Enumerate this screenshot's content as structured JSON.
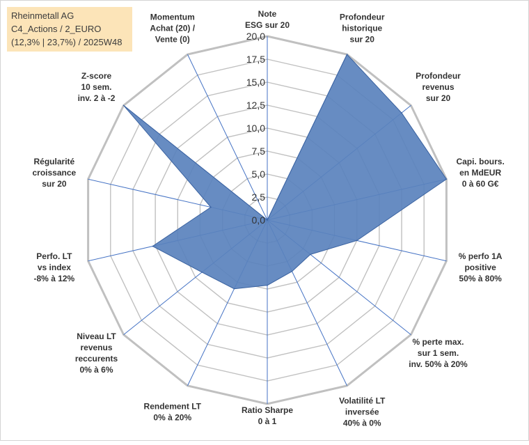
{
  "info": {
    "line1": "Rheinmetall AG",
    "line2": "C4_Actions / 2_EURO",
    "line3": "(12,3% | 23,7%) / 2025W48"
  },
  "chart_data": {
    "type": "radar",
    "title": "Rheinmetall AG",
    "r_min": 0,
    "r_max": 20,
    "r_step": 2.5,
    "tick_labels": [
      "0,0",
      "2,5",
      "5,0",
      "7,5",
      "10,0",
      "12,5",
      "15,0",
      "17,5",
      "20,0"
    ],
    "grid": true,
    "axes": [
      {
        "label": [
          "Note",
          "ESG sur 20"
        ],
        "value": 0
      },
      {
        "label": [
          "Profondeur",
          "historique",
          "sur 20"
        ],
        "value": 20
      },
      {
        "label": [
          "Profondeur",
          "revenus",
          "sur 20"
        ],
        "value": 18.7
      },
      {
        "label": [
          "Capi. bours.",
          "en MdEUR",
          "0 à 60 G€"
        ],
        "value": 20
      },
      {
        "label": [
          "% perfo 1A",
          "positive",
          "50% à 80%"
        ],
        "value": 10
      },
      {
        "label": [
          "% perte max.",
          "sur 1 sem.",
          "inv. 50% à 20%"
        ],
        "value": 6
      },
      {
        "label": [
          "Volatilité LT",
          "inversée",
          "40% à 0%"
        ],
        "value": 6.2
      },
      {
        "label": [
          "Ratio Sharpe",
          "0 à 1"
        ],
        "value": 7.1
      },
      {
        "label": [
          "Rendement LT",
          "0% à 20%"
        ],
        "value": 8.3
      },
      {
        "label": [
          "Niveau LT",
          "revenus",
          "reccurents",
          "0% à 6%"
        ],
        "value": 9.1
      },
      {
        "label": [
          "Perfo. LT",
          "vs index",
          "-8% à 12%"
        ],
        "value": 12.8
      },
      {
        "label": [
          "Régularité",
          "croissance",
          "sur 20"
        ],
        "value": 6.3
      },
      {
        "label": [
          "Z-score",
          "10 sem.",
          "inv. 2 à -2"
        ],
        "value": 20
      },
      {
        "label": [
          "Momentum",
          "Achat (20) /",
          "Vente (0)"
        ],
        "value": 0
      }
    ],
    "series": [
      {
        "name": "Rheinmetall AG",
        "color": "#4472c4",
        "fill": "#5a82bd",
        "stroke": "#3a62a0"
      }
    ],
    "grid_color": "#c0c0c0",
    "axis_color": "#4472c4"
  }
}
